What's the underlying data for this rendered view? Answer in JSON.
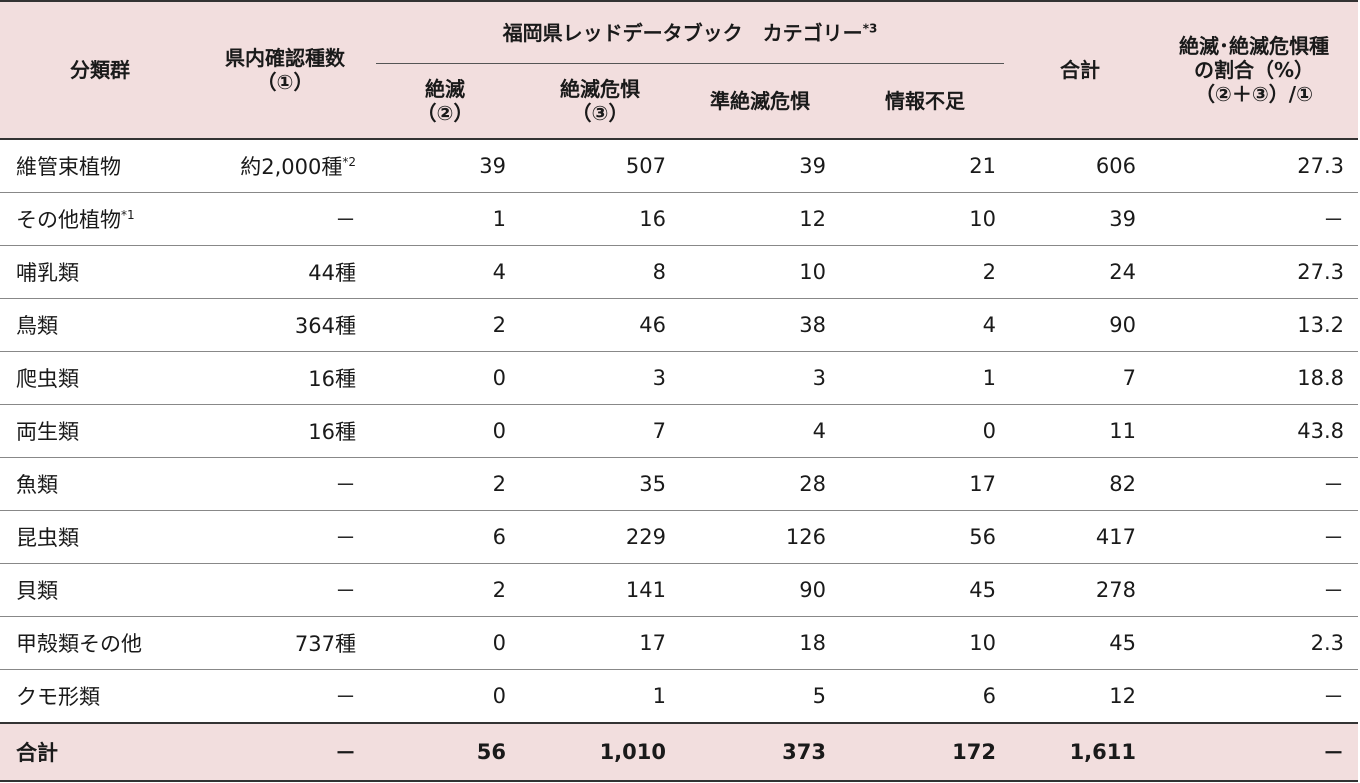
{
  "header": {
    "col_group": "分類群",
    "col_confirmed": "県内確認種数",
    "col_confirmed_ref": "（①）",
    "category_group": "福岡県レッドデータブック　カテゴリー",
    "category_group_note": "*3",
    "col_extinct": "絶滅",
    "col_extinct_ref": "（②）",
    "col_endangered": "絶滅危惧",
    "col_endangered_ref": "（③）",
    "col_near": "準絶滅危惧",
    "col_dd": "情報不足",
    "col_total": "合計",
    "col_ratio_l1": "絶滅･絶滅危惧種",
    "col_ratio_l2": "の割合（%）",
    "col_ratio_l3": "（②＋③）/①"
  },
  "rows": [
    {
      "name": "維管束植物",
      "name_note": "",
      "confirmed": "約2,000種",
      "confirmed_note": "*2",
      "extinct": "39",
      "endangered": "507",
      "near": "39",
      "dd": "21",
      "total": "606",
      "ratio": "27.3"
    },
    {
      "name": "その他植物",
      "name_note": "*1",
      "confirmed": "－",
      "confirmed_note": "",
      "extinct": "1",
      "endangered": "16",
      "near": "12",
      "dd": "10",
      "total": "39",
      "ratio": "－"
    },
    {
      "name": "哺乳類",
      "name_note": "",
      "confirmed": "44種",
      "confirmed_note": "",
      "extinct": "4",
      "endangered": "8",
      "near": "10",
      "dd": "2",
      "total": "24",
      "ratio": "27.3"
    },
    {
      "name": "鳥類",
      "name_note": "",
      "confirmed": "364種",
      "confirmed_note": "",
      "extinct": "2",
      "endangered": "46",
      "near": "38",
      "dd": "4",
      "total": "90",
      "ratio": "13.2"
    },
    {
      "name": "爬虫類",
      "name_note": "",
      "confirmed": "16種",
      "confirmed_note": "",
      "extinct": "0",
      "endangered": "3",
      "near": "3",
      "dd": "1",
      "total": "7",
      "ratio": "18.8"
    },
    {
      "name": "両生類",
      "name_note": "",
      "confirmed": "16種",
      "confirmed_note": "",
      "extinct": "0",
      "endangered": "7",
      "near": "4",
      "dd": "0",
      "total": "11",
      "ratio": "43.8"
    },
    {
      "name": "魚類",
      "name_note": "",
      "confirmed": "－",
      "confirmed_note": "",
      "extinct": "2",
      "endangered": "35",
      "near": "28",
      "dd": "17",
      "total": "82",
      "ratio": "－"
    },
    {
      "name": "昆虫類",
      "name_note": "",
      "confirmed": "－",
      "confirmed_note": "",
      "extinct": "6",
      "endangered": "229",
      "near": "126",
      "dd": "56",
      "total": "417",
      "ratio": "－"
    },
    {
      "name": "貝類",
      "name_note": "",
      "confirmed": "－",
      "confirmed_note": "",
      "extinct": "2",
      "endangered": "141",
      "near": "90",
      "dd": "45",
      "total": "278",
      "ratio": "－"
    },
    {
      "name": "甲殻類その他",
      "name_note": "",
      "confirmed": "737種",
      "confirmed_note": "",
      "extinct": "0",
      "endangered": "17",
      "near": "18",
      "dd": "10",
      "total": "45",
      "ratio": "2.3"
    },
    {
      "name": "クモ形類",
      "name_note": "",
      "confirmed": "－",
      "confirmed_note": "",
      "extinct": "0",
      "endangered": "1",
      "near": "5",
      "dd": "6",
      "total": "12",
      "ratio": "－"
    }
  ],
  "footer": {
    "name": "合計",
    "confirmed": "－",
    "extinct": "56",
    "endangered": "1,010",
    "near": "373",
    "dd": "172",
    "total": "1,611",
    "ratio": "－"
  }
}
